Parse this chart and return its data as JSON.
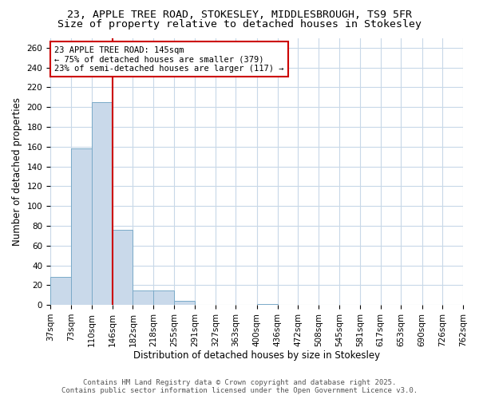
{
  "title1": "23, APPLE TREE ROAD, STOKESLEY, MIDDLESBROUGH, TS9 5FR",
  "title2": "Size of property relative to detached houses in Stokesley",
  "xlabel": "Distribution of detached houses by size in Stokesley",
  "ylabel": "Number of detached properties",
  "bin_labels": [
    "37sqm",
    "73sqm",
    "110sqm",
    "146sqm",
    "182sqm",
    "218sqm",
    "255sqm",
    "291sqm",
    "327sqm",
    "363sqm",
    "400sqm",
    "436sqm",
    "472sqm",
    "508sqm",
    "545sqm",
    "581sqm",
    "617sqm",
    "653sqm",
    "690sqm",
    "726sqm",
    "762sqm"
  ],
  "bin_edges": [
    37,
    73,
    110,
    146,
    182,
    218,
    255,
    291,
    327,
    363,
    400,
    436,
    472,
    508,
    545,
    581,
    617,
    653,
    690,
    726,
    762
  ],
  "bar_heights": [
    28,
    158,
    205,
    76,
    15,
    15,
    4,
    0,
    0,
    0,
    1,
    0,
    0,
    0,
    0,
    0,
    0,
    0,
    0,
    0,
    1
  ],
  "bar_color": "#c9d9ea",
  "bar_edge_color": "#7aaac8",
  "vline_x": 146,
  "vline_color": "#cc0000",
  "annotation_line1": "23 APPLE TREE ROAD: 145sqm",
  "annotation_line2": "← 75% of detached houses are smaller (379)",
  "annotation_line3": "23% of semi-detached houses are larger (117) →",
  "annotation_box_edge_color": "#cc0000",
  "ylim": [
    0,
    270
  ],
  "yticks": [
    0,
    20,
    40,
    60,
    80,
    100,
    120,
    140,
    160,
    180,
    200,
    220,
    240,
    260
  ],
  "footer1": "Contains HM Land Registry data © Crown copyright and database right 2025.",
  "footer2": "Contains public sector information licensed under the Open Government Licence v3.0.",
  "bg_color": "#ffffff",
  "plot_bg_color": "#ffffff",
  "grid_color": "#c8d8e8",
  "title_fontsize": 9.5,
  "axis_label_fontsize": 8.5,
  "tick_fontsize": 7.5,
  "footer_fontsize": 6.5,
  "footer_color": "#555555"
}
